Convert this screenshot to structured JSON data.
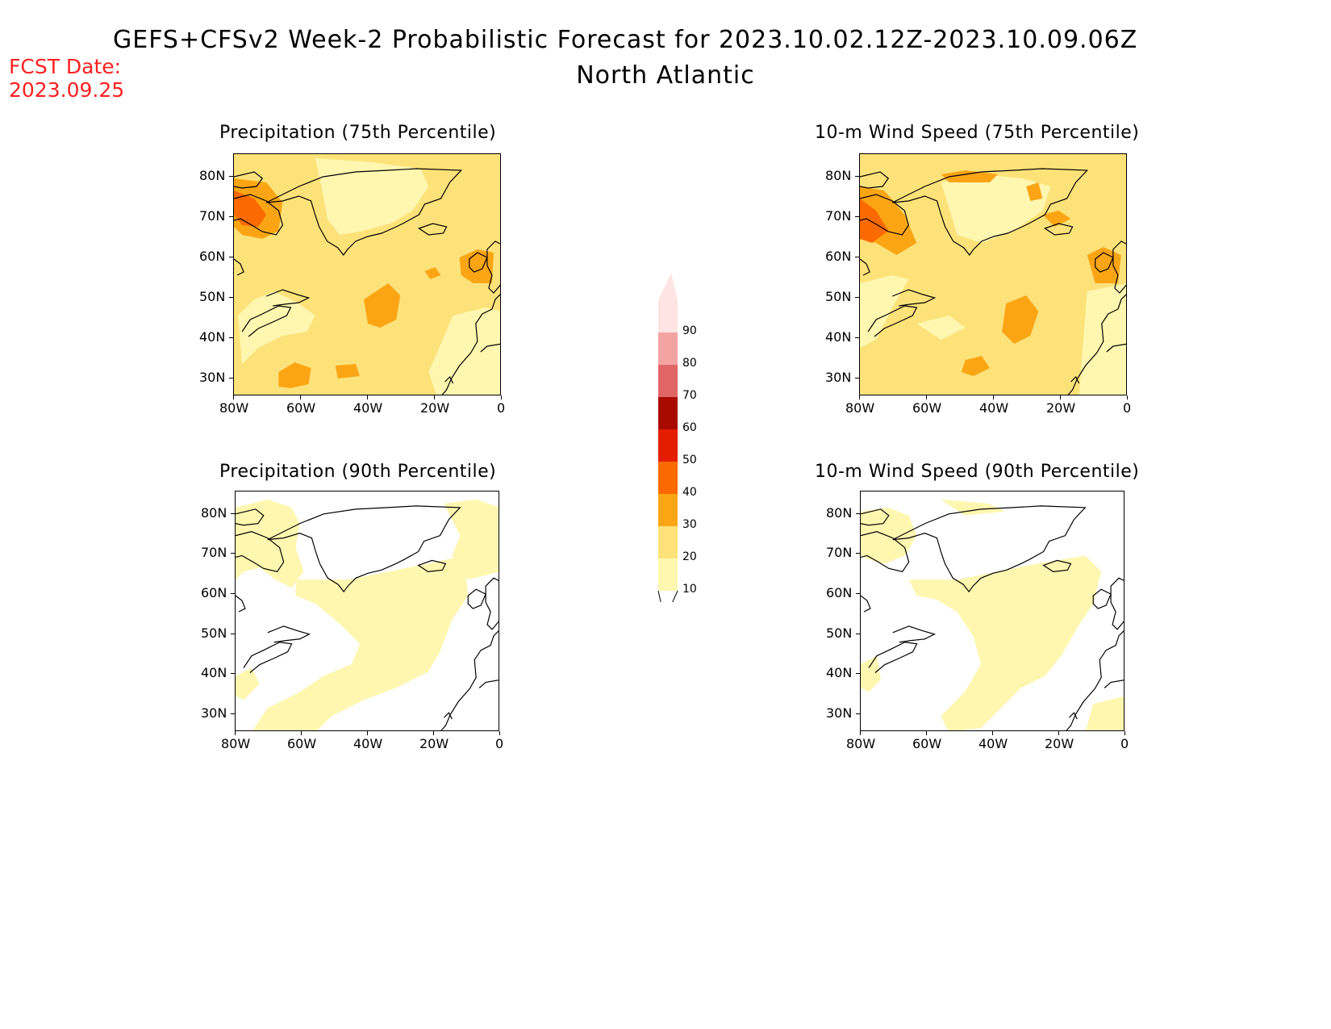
{
  "header": {
    "title": "GEFS+CFSv2 Week-2 Probabilistic Forecast for 2023.10.02.12Z-2023.10.09.06Z",
    "region": "North Atlantic",
    "fcst_date_label": "FCST Date:",
    "fcst_date": "2023.09.25",
    "fcst_color": "#ff2020"
  },
  "axes": {
    "lat_labels": [
      "80N",
      "70N",
      "60N",
      "50N",
      "40N",
      "30N"
    ],
    "lon_labels": [
      "80W",
      "60W",
      "40W",
      "20W",
      "0"
    ]
  },
  "panels": [
    {
      "id": "precip-75",
      "title": "Precipitation (75th Percentile)"
    },
    {
      "id": "wind-75",
      "title": "10-m Wind Speed (75th Percentile)"
    },
    {
      "id": "precip-90",
      "title": "Precipitation (90th Percentile)"
    },
    {
      "id": "wind-90",
      "title": "10-m Wind Speed (90th Percentile)"
    }
  ],
  "colorbar": {
    "levels": [
      "10",
      "20",
      "30",
      "40",
      "50",
      "60",
      "70",
      "80",
      "90"
    ],
    "colors": [
      "#fff7b0",
      "#fde27a",
      "#fca514",
      "#fb6a00",
      "#e41d00",
      "#a80a00",
      "#e06666",
      "#f4a3a3",
      "#ffe4e4"
    ]
  }
}
